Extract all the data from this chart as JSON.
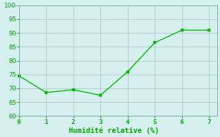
{
  "x": [
    0,
    1,
    2,
    3,
    4,
    5,
    6,
    7
  ],
  "y": [
    74.5,
    68.5,
    69.5,
    67.5,
    76.0,
    86.5,
    91.0,
    91.0
  ],
  "xlabel": "Humidité relative (%)",
  "xlim": [
    -0.3,
    7.3
  ],
  "ylim": [
    60,
    100
  ],
  "yticks": [
    60,
    65,
    70,
    75,
    80,
    85,
    90,
    95,
    100
  ],
  "xticks": [
    0,
    1,
    2,
    3,
    4,
    5,
    6,
    7
  ],
  "line_color": "#00bb00",
  "marker_color": "#00bb00",
  "bg_color": "#d5f0ef",
  "grid_color": "#b0c8c8",
  "label_color": "#00aa00",
  "tick_color": "#00aa00",
  "line_width": 1.0,
  "marker_size": 3
}
